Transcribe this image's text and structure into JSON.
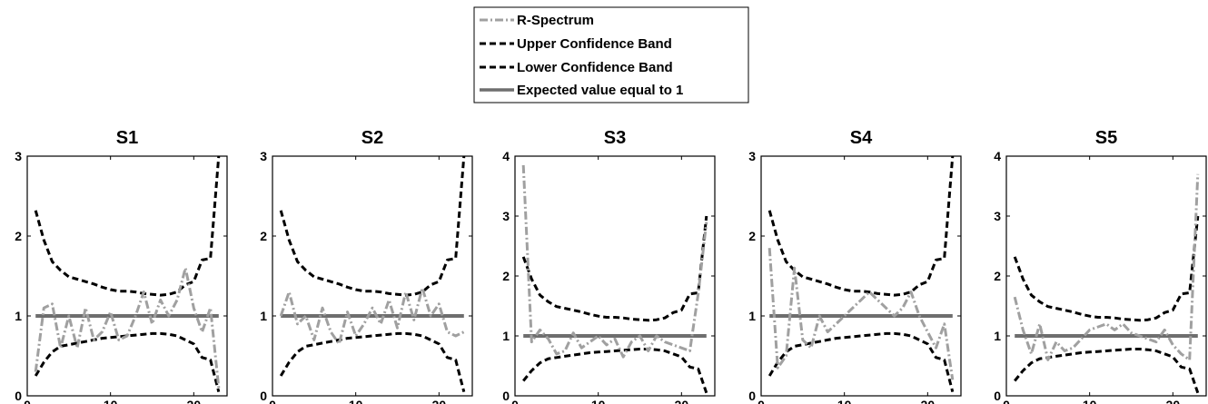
{
  "legend": [
    {
      "label": "R-Spectrum",
      "style": "dashdot",
      "color": "#a0a0a0"
    },
    {
      "label": "Upper Confidence Band",
      "style": "dashed",
      "color": "#000000"
    },
    {
      "label": "Lower Confidence Band",
      "style": "dashed",
      "color": "#000000"
    },
    {
      "label": "Expected value equal to 1",
      "style": "solid",
      "color": "#6e6e6e"
    }
  ],
  "colors": {
    "r_spectrum": "#a0a0a0",
    "bands": "#000000",
    "expected": "#6e6e6e"
  },
  "chart_data": [
    {
      "type": "line",
      "title": "S1",
      "xlim": [
        0,
        24
      ],
      "ylim": [
        0,
        3
      ],
      "xticks": [
        0,
        10,
        20
      ],
      "yticks": [
        0,
        1,
        2,
        3
      ],
      "grid": false,
      "x": [
        1,
        2,
        3,
        4,
        5,
        6,
        7,
        8,
        9,
        10,
        11,
        12,
        13,
        14,
        15,
        16,
        17,
        18,
        19,
        20,
        21,
        22,
        23
      ],
      "series": [
        {
          "name": "R-Spectrum",
          "values": [
            0.3,
            1.1,
            1.15,
            0.6,
            1.0,
            0.6,
            1.1,
            0.7,
            0.8,
            1.05,
            0.7,
            0.75,
            1.0,
            1.3,
            0.9,
            1.2,
            1.0,
            1.2,
            1.6,
            1.1,
            0.8,
            1.1,
            0.1
          ]
        },
        {
          "name": "Upper Confidence Band",
          "values": [
            2.32,
            1.95,
            1.68,
            1.57,
            1.49,
            1.46,
            1.43,
            1.4,
            1.36,
            1.33,
            1.31,
            1.31,
            1.3,
            1.28,
            1.27,
            1.26,
            1.27,
            1.3,
            1.39,
            1.43,
            1.7,
            1.72,
            3.0
          ]
        },
        {
          "name": "Lower Confidence Band",
          "values": [
            0.25,
            0.42,
            0.55,
            0.62,
            0.64,
            0.66,
            0.68,
            0.7,
            0.72,
            0.73,
            0.74,
            0.75,
            0.76,
            0.77,
            0.78,
            0.78,
            0.77,
            0.75,
            0.7,
            0.65,
            0.48,
            0.45,
            0.05
          ]
        },
        {
          "name": "Expected value equal to 1",
          "values": [
            1,
            1,
            1,
            1,
            1,
            1,
            1,
            1,
            1,
            1,
            1,
            1,
            1,
            1,
            1,
            1,
            1,
            1,
            1,
            1,
            1,
            1,
            1
          ]
        }
      ]
    },
    {
      "type": "line",
      "title": "S2",
      "xlim": [
        0,
        24
      ],
      "ylim": [
        0,
        3
      ],
      "xticks": [
        0,
        10,
        20
      ],
      "yticks": [
        0,
        1,
        2,
        3
      ],
      "grid": false,
      "x": [
        1,
        2,
        3,
        4,
        5,
        6,
        7,
        8,
        9,
        10,
        11,
        12,
        13,
        14,
        15,
        16,
        17,
        18,
        19,
        20,
        21,
        22,
        23
      ],
      "series": [
        {
          "name": "R-Spectrum",
          "values": [
            1.0,
            1.3,
            0.9,
            1.0,
            0.7,
            1.1,
            0.8,
            0.65,
            1.05,
            0.75,
            0.9,
            1.1,
            0.9,
            1.2,
            0.85,
            1.3,
            0.95,
            1.35,
            1.0,
            1.15,
            0.8,
            0.75,
            0.8
          ]
        },
        {
          "name": "Upper Confidence Band",
          "values": [
            2.32,
            1.95,
            1.68,
            1.57,
            1.49,
            1.46,
            1.43,
            1.4,
            1.36,
            1.33,
            1.31,
            1.31,
            1.3,
            1.28,
            1.27,
            1.26,
            1.27,
            1.3,
            1.39,
            1.43,
            1.7,
            1.72,
            3.0
          ]
        },
        {
          "name": "Lower Confidence Band",
          "values": [
            0.25,
            0.42,
            0.55,
            0.62,
            0.64,
            0.66,
            0.68,
            0.7,
            0.72,
            0.73,
            0.74,
            0.75,
            0.76,
            0.77,
            0.78,
            0.78,
            0.77,
            0.75,
            0.7,
            0.65,
            0.48,
            0.45,
            0.05
          ]
        },
        {
          "name": "Expected value equal to 1",
          "values": [
            1,
            1,
            1,
            1,
            1,
            1,
            1,
            1,
            1,
            1,
            1,
            1,
            1,
            1,
            1,
            1,
            1,
            1,
            1,
            1,
            1,
            1,
            1
          ]
        }
      ]
    },
    {
      "type": "line",
      "title": "S3",
      "xlim": [
        0,
        24
      ],
      "ylim": [
        0,
        4
      ],
      "xticks": [
        0,
        10,
        20
      ],
      "yticks": [
        0,
        1,
        2,
        3,
        4
      ],
      "grid": false,
      "x": [
        1,
        2,
        3,
        4,
        5,
        6,
        7,
        8,
        9,
        10,
        11,
        12,
        13,
        14,
        15,
        16,
        17,
        18,
        19,
        20,
        21,
        22,
        23
      ],
      "series": [
        {
          "name": "R-Spectrum",
          "values": [
            3.85,
            0.9,
            1.1,
            0.95,
            0.7,
            0.75,
            1.05,
            0.8,
            0.9,
            1.0,
            0.85,
            0.95,
            0.65,
            0.9,
            1.0,
            0.75,
            1.0,
            0.9,
            0.85,
            0.8,
            0.75,
            1.7,
            2.9
          ]
        },
        {
          "name": "Upper Confidence Band",
          "values": [
            2.32,
            1.95,
            1.68,
            1.57,
            1.49,
            1.46,
            1.43,
            1.4,
            1.36,
            1.33,
            1.31,
            1.31,
            1.3,
            1.28,
            1.27,
            1.26,
            1.27,
            1.3,
            1.39,
            1.43,
            1.7,
            1.72,
            3.0
          ]
        },
        {
          "name": "Lower Confidence Band",
          "values": [
            0.25,
            0.42,
            0.55,
            0.62,
            0.64,
            0.66,
            0.68,
            0.7,
            0.72,
            0.73,
            0.74,
            0.75,
            0.76,
            0.77,
            0.78,
            0.78,
            0.77,
            0.75,
            0.7,
            0.65,
            0.48,
            0.45,
            0.05
          ]
        },
        {
          "name": "Expected value equal to 1",
          "values": [
            1,
            1,
            1,
            1,
            1,
            1,
            1,
            1,
            1,
            1,
            1,
            1,
            1,
            1,
            1,
            1,
            1,
            1,
            1,
            1,
            1,
            1,
            1
          ]
        }
      ]
    },
    {
      "type": "line",
      "title": "S4",
      "xlim": [
        0,
        24
      ],
      "ylim": [
        0,
        3
      ],
      "xticks": [
        0,
        10,
        20
      ],
      "yticks": [
        0,
        1,
        2,
        3
      ],
      "grid": false,
      "x": [
        1,
        2,
        3,
        4,
        5,
        6,
        7,
        8,
        9,
        10,
        11,
        12,
        13,
        14,
        15,
        16,
        17,
        18,
        19,
        20,
        21,
        22,
        23
      ],
      "series": [
        {
          "name": "R-Spectrum",
          "values": [
            1.85,
            0.35,
            0.5,
            1.6,
            0.7,
            0.6,
            1.0,
            0.8,
            0.9,
            1.0,
            1.1,
            1.2,
            1.3,
            1.2,
            1.1,
            1.0,
            1.1,
            1.3,
            1.0,
            0.8,
            0.6,
            0.9,
            0.2
          ]
        },
        {
          "name": "Upper Confidence Band",
          "values": [
            2.32,
            1.95,
            1.68,
            1.57,
            1.49,
            1.46,
            1.43,
            1.4,
            1.36,
            1.33,
            1.31,
            1.31,
            1.3,
            1.28,
            1.27,
            1.26,
            1.27,
            1.3,
            1.39,
            1.43,
            1.7,
            1.72,
            3.0
          ]
        },
        {
          "name": "Lower Confidence Band",
          "values": [
            0.25,
            0.42,
            0.55,
            0.62,
            0.64,
            0.66,
            0.68,
            0.7,
            0.72,
            0.73,
            0.74,
            0.75,
            0.76,
            0.77,
            0.78,
            0.78,
            0.77,
            0.75,
            0.7,
            0.65,
            0.48,
            0.45,
            0.05
          ]
        },
        {
          "name": "Expected value equal to 1",
          "values": [
            1,
            1,
            1,
            1,
            1,
            1,
            1,
            1,
            1,
            1,
            1,
            1,
            1,
            1,
            1,
            1,
            1,
            1,
            1,
            1,
            1,
            1,
            1
          ]
        }
      ]
    },
    {
      "type": "line",
      "title": "S5",
      "xlim": [
        0,
        24
      ],
      "ylim": [
        0,
        4
      ],
      "xticks": [
        0,
        10,
        20
      ],
      "yticks": [
        0,
        1,
        2,
        3,
        4
      ],
      "grid": false,
      "x": [
        1,
        2,
        3,
        4,
        5,
        6,
        7,
        8,
        9,
        10,
        11,
        12,
        13,
        14,
        15,
        16,
        17,
        18,
        19,
        20,
        21,
        22,
        23
      ],
      "series": [
        {
          "name": "R-Spectrum",
          "values": [
            1.65,
            1.1,
            0.7,
            1.2,
            0.6,
            0.9,
            0.75,
            0.8,
            0.95,
            1.1,
            1.15,
            1.2,
            1.1,
            1.2,
            1.05,
            1.0,
            0.95,
            0.9,
            1.1,
            0.85,
            0.7,
            0.6,
            3.7
          ]
        },
        {
          "name": "Upper Confidence Band",
          "values": [
            2.32,
            1.95,
            1.68,
            1.57,
            1.49,
            1.46,
            1.43,
            1.4,
            1.36,
            1.33,
            1.31,
            1.31,
            1.3,
            1.28,
            1.27,
            1.26,
            1.27,
            1.3,
            1.39,
            1.43,
            1.7,
            1.72,
            3.0
          ]
        },
        {
          "name": "Lower Confidence Band",
          "values": [
            0.25,
            0.42,
            0.55,
            0.62,
            0.64,
            0.66,
            0.68,
            0.7,
            0.72,
            0.73,
            0.74,
            0.75,
            0.76,
            0.77,
            0.78,
            0.78,
            0.77,
            0.75,
            0.7,
            0.65,
            0.48,
            0.45,
            0.05
          ]
        },
        {
          "name": "Expected value equal to 1",
          "values": [
            1,
            1,
            1,
            1,
            1,
            1,
            1,
            1,
            1,
            1,
            1,
            1,
            1,
            1,
            1,
            1,
            1,
            1,
            1,
            1,
            1,
            1,
            1
          ]
        }
      ]
    }
  ]
}
